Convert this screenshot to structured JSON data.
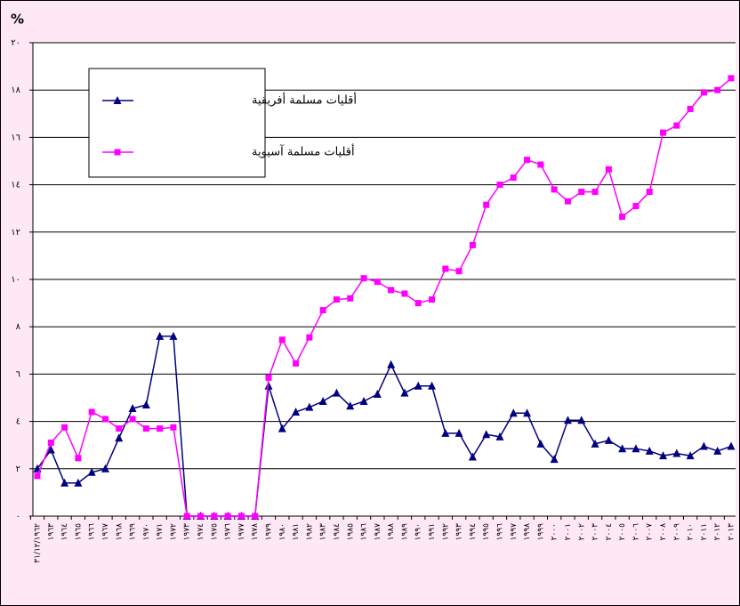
{
  "chart_data": {
    "type": "line",
    "y_label": "%",
    "categories": [
      "٣١/١٢/١٩٦٢",
      "١٩٦٣",
      "١٩٦٤",
      "١٩٦٥",
      "١٩٦٦",
      "١٩٦٧",
      "١٩٦٨",
      "١٩٦٩",
      "١٩٧٠",
      "١٩٧١",
      "١٩٧٢",
      "١٩٧٣",
      "١٩٧٤",
      "١٩٧٥",
      "١٩٧٦",
      "١٩٧٧",
      "١٩٧٨",
      "١٩٧٩",
      "١٩٨٠",
      "١٩٨١",
      "١٩٨٢",
      "١٩٨٣",
      "١٩٨٤",
      "١٩٨٥",
      "١٩٨٦",
      "١٩٨٧",
      "١٩٨٨",
      "١٩٨٩",
      "١٩٩٠",
      "١٩٩١",
      "١٩٩٢",
      "١٩٩٣",
      "١٩٩٤",
      "١٩٩٥",
      "١٩٩٦",
      "١٩٩٧",
      "١٩٩٨",
      "١٩٩٩",
      "٢٠٠٠",
      "٢٠٠١",
      "٢٠٠٢",
      "٢٠٠٣",
      "٢٠٠٤",
      "٢٠٠٥",
      "٢٠٠٦",
      "٢٠٠٧",
      "٢٠٠٨",
      "٢٠٠٩",
      "٢٠١٠",
      "٢٠١١",
      "٢٠١٢",
      "٢٠١٣"
    ],
    "series": [
      {
        "name": "أقليات مسلمة أفريقية",
        "color": "#000080",
        "marker": "triangle",
        "values": [
          2.0,
          2.8,
          1.4,
          1.4,
          1.85,
          2.0,
          3.3,
          4.55,
          4.7,
          7.6,
          7.6,
          0,
          0,
          0,
          0,
          0,
          0,
          5.5,
          3.7,
          4.4,
          4.6,
          4.85,
          5.2,
          4.65,
          4.85,
          5.15,
          6.4,
          5.2,
          5.5,
          5.5,
          3.5,
          3.5,
          2.5,
          3.45,
          3.35,
          4.35,
          4.35,
          3.05,
          2.4,
          4.05,
          4.05,
          3.05,
          3.2,
          2.85,
          2.85,
          2.75,
          2.55,
          2.65,
          2.55,
          2.95,
          2.75,
          2.95
        ]
      },
      {
        "name": "أقليات مسلمة آسيوية",
        "color": "#ff00ff",
        "marker": "square",
        "values": [
          1.7,
          3.1,
          3.75,
          2.45,
          4.4,
          4.1,
          3.7,
          4.1,
          3.7,
          3.7,
          3.75,
          0,
          0,
          0,
          0,
          0,
          0,
          5.85,
          7.45,
          6.45,
          7.55,
          8.7,
          9.15,
          9.2,
          10.05,
          9.9,
          9.55,
          9.4,
          9.0,
          9.15,
          10.45,
          10.35,
          11.45,
          13.15,
          14.0,
          14.3,
          15.05,
          14.85,
          13.8,
          13.3,
          13.7,
          13.7,
          14.65,
          12.65,
          13.1,
          13.7,
          16.2,
          16.5,
          17.2,
          17.9,
          18.0,
          18.5
        ]
      }
    ],
    "ylim": [
      0,
      20
    ],
    "yticks": [
      {
        "value": 0,
        "label": "٠"
      },
      {
        "value": 2,
        "label": "٢"
      },
      {
        "value": 4,
        "label": "٤"
      },
      {
        "value": 6,
        "label": "٦"
      },
      {
        "value": 8,
        "label": "٨"
      },
      {
        "value": 10,
        "label": "١٠"
      },
      {
        "value": 12,
        "label": "١٢"
      },
      {
        "value": 14,
        "label": "١٤"
      },
      {
        "value": 16,
        "label": "١٦"
      },
      {
        "value": 18,
        "label": "١٨"
      },
      {
        "value": 20,
        "label": "٢٠"
      }
    ],
    "grid": true
  }
}
